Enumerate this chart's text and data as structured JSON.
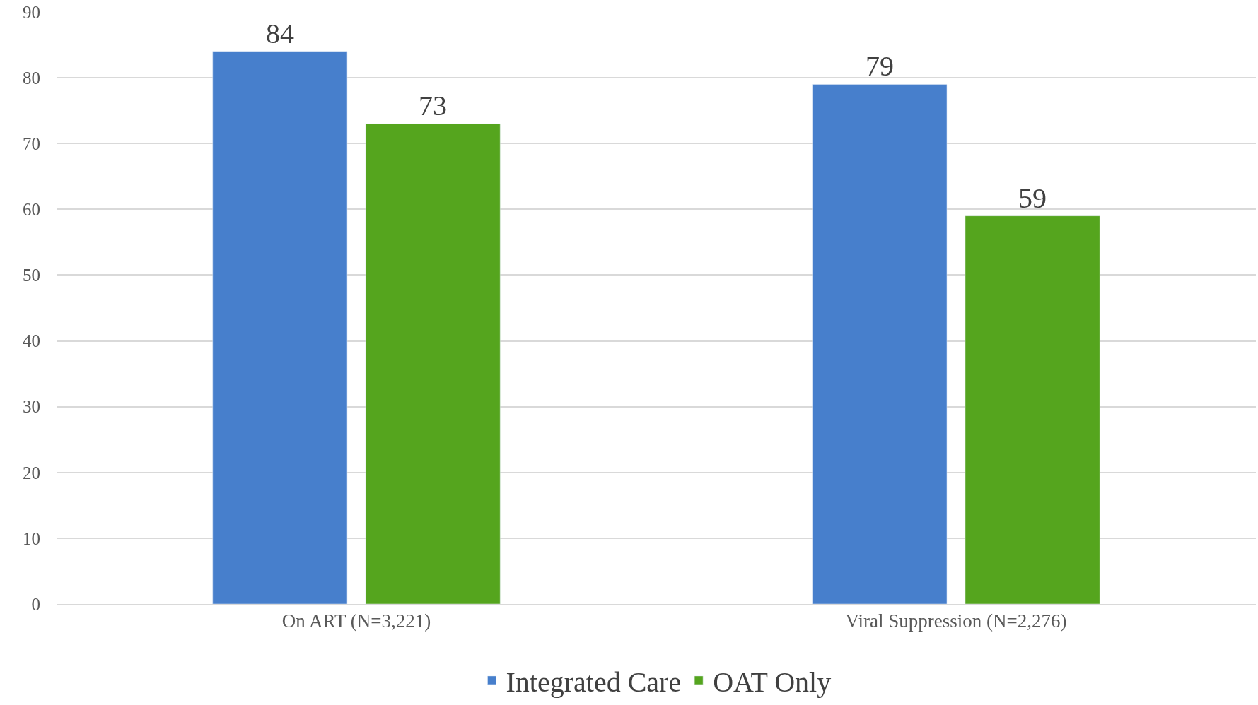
{
  "chart_data": {
    "type": "bar",
    "categories": [
      "On ART (N=3,221)",
      "Viral Suppression (N=2,276)"
    ],
    "series": [
      {
        "name": "Integrated Care",
        "color": "#477fcc",
        "values": [
          84,
          79
        ]
      },
      {
        "name": "OAT Only",
        "color": "#55a51e",
        "values": [
          73,
          59
        ]
      }
    ],
    "ylim": [
      0,
      90
    ],
    "yticks": [
      0,
      10,
      20,
      30,
      40,
      50,
      60,
      70,
      80,
      90
    ],
    "grid": "y",
    "legend": "bottom",
    "data_labels": true
  }
}
